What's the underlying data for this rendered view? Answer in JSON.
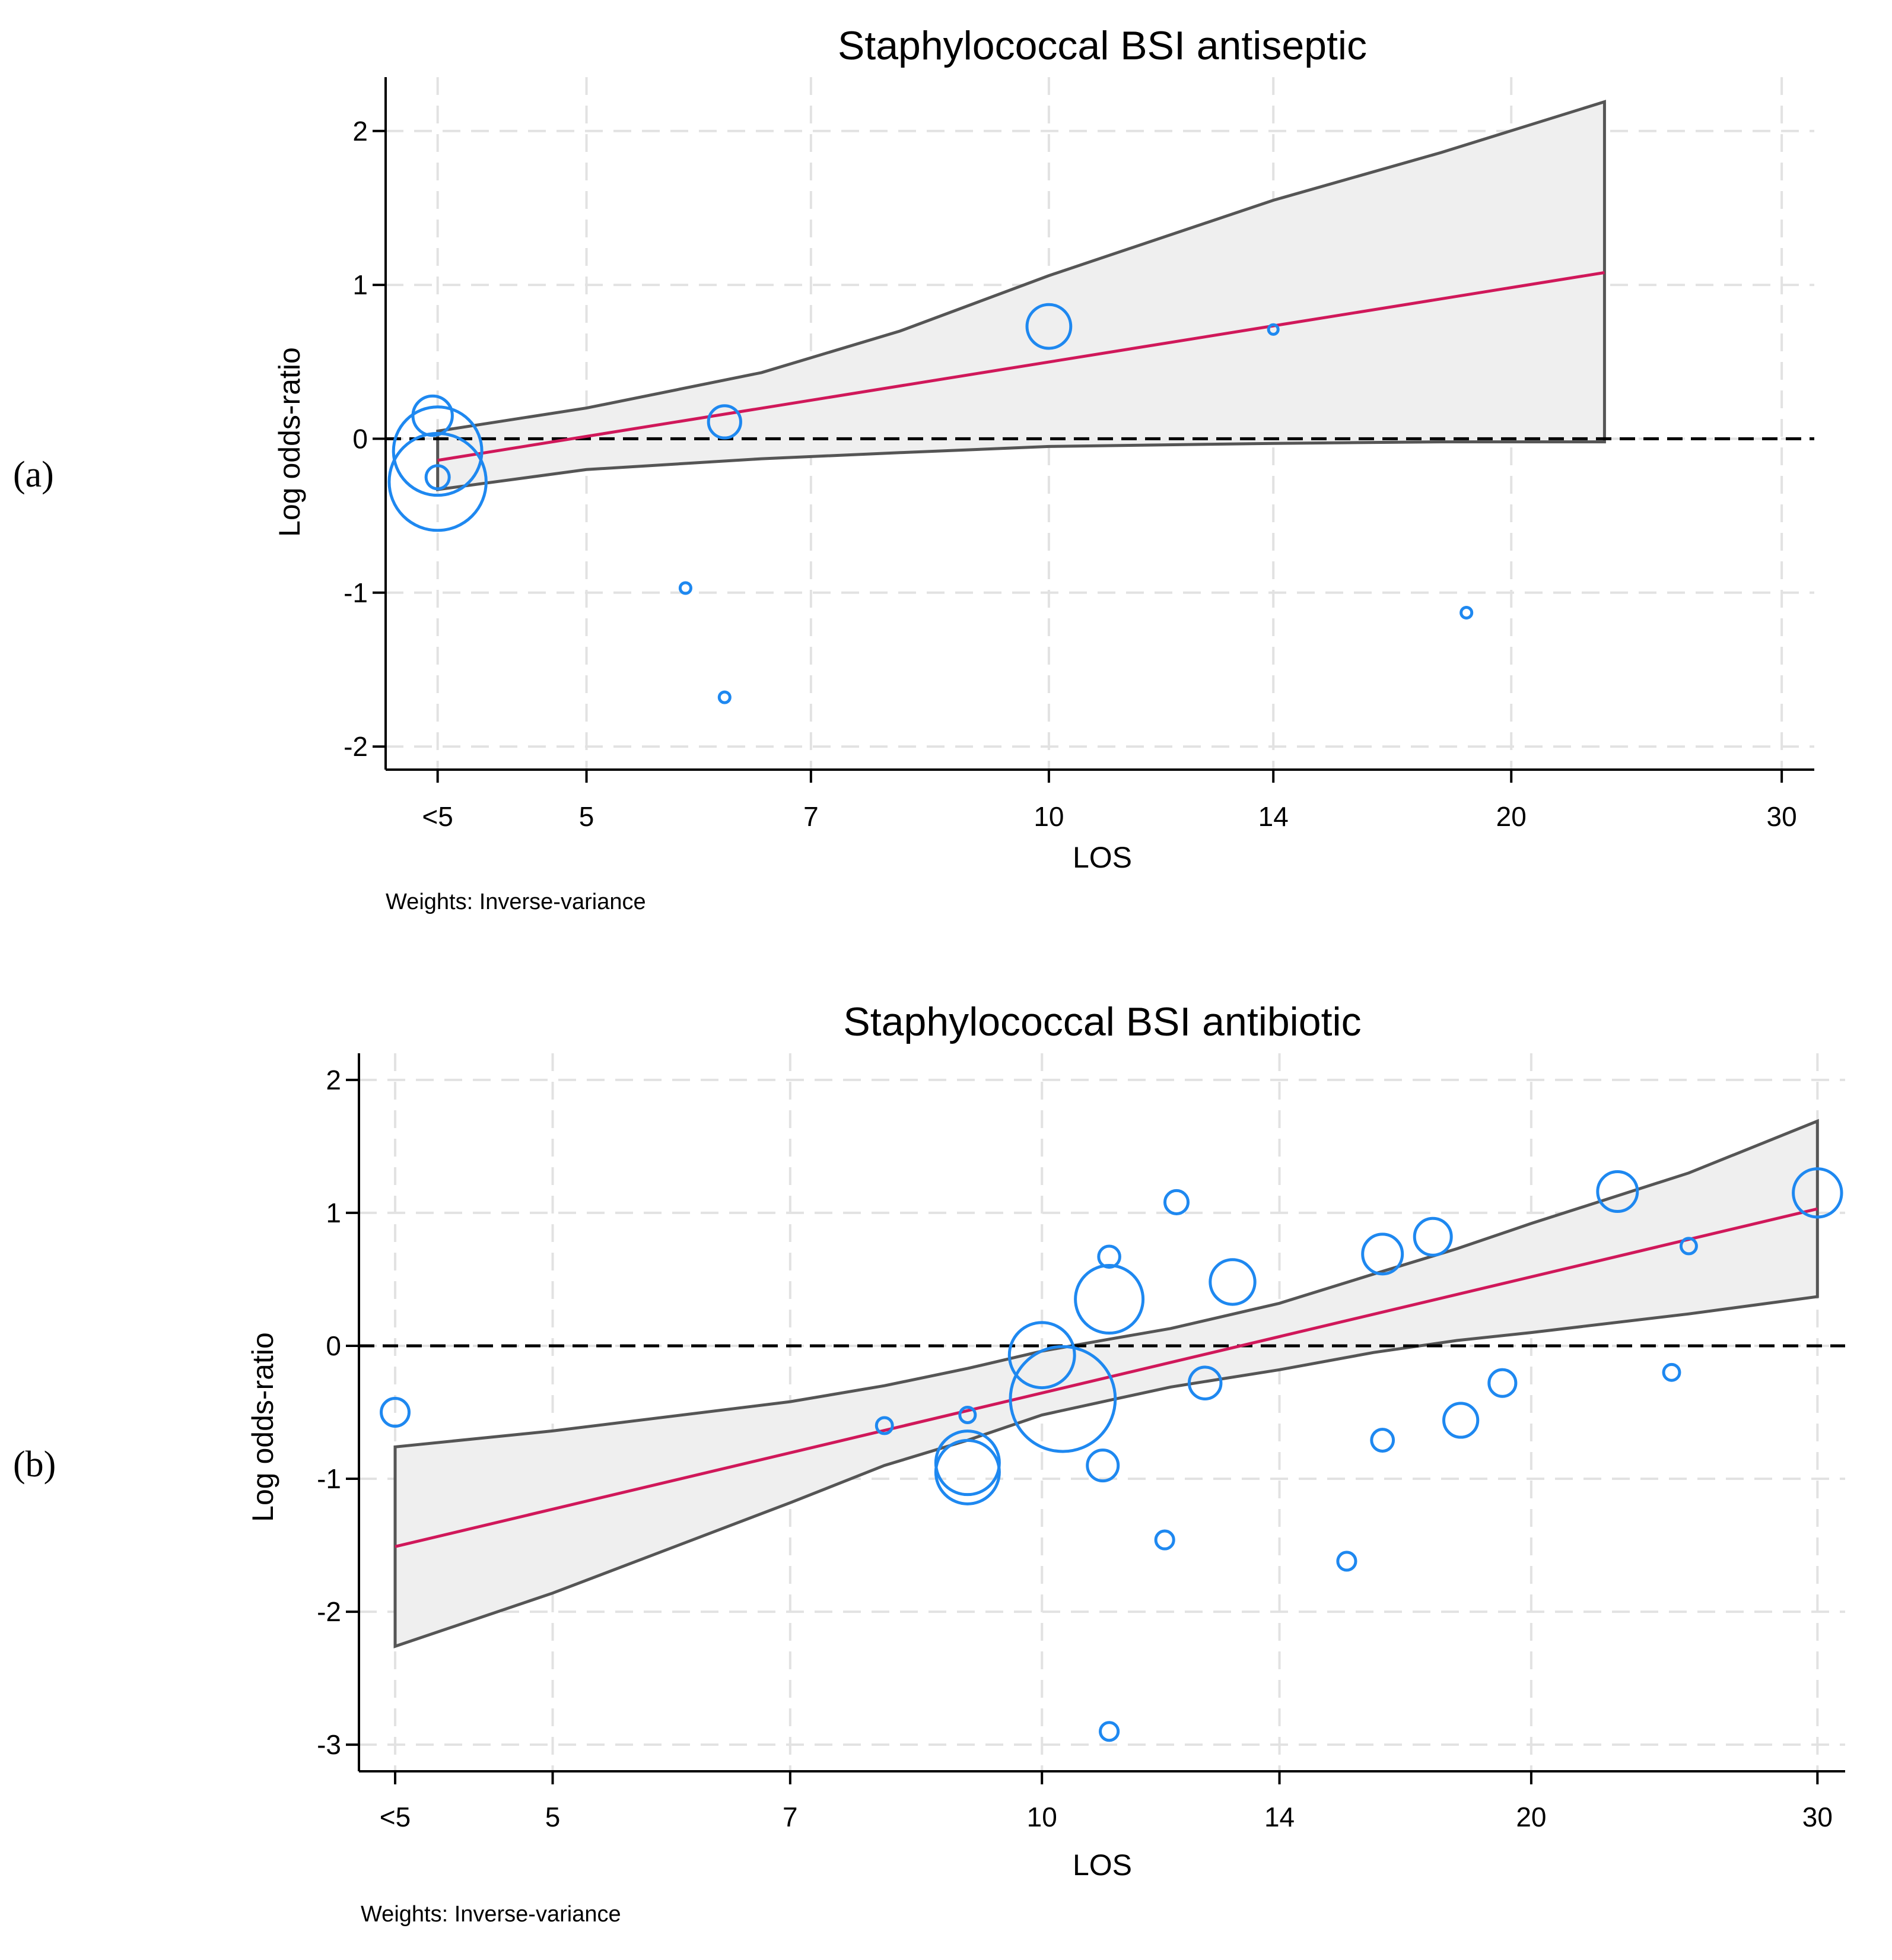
{
  "colors": {
    "bubble": "#1e88f0",
    "fit": "#d0185a",
    "band_fill": "#efefef",
    "band_edge": "#555555",
    "grid": "#e2e2e2",
    "axis": "#000000"
  },
  "chart_data": [
    {
      "type": "scatter",
      "panel_label": "(a)",
      "title": "Staphylococcal BSI antiseptic",
      "xlabel": "LOS",
      "ylabel": "Log odds-ratio",
      "note": "Weights: Inverse-variance",
      "x_scale": "log",
      "xlim": [
        3.7,
        31.5
      ],
      "ylim": [
        -2.15,
        2.35
      ],
      "x_ticks": [
        {
          "value": 4,
          "label": "<5"
        },
        {
          "value": 5,
          "label": "5"
        },
        {
          "value": 7,
          "label": "7"
        },
        {
          "value": 10,
          "label": "10"
        },
        {
          "value": 14,
          "label": "14"
        },
        {
          "value": 20,
          "label": "20"
        },
        {
          "value": 30,
          "label": "30"
        }
      ],
      "y_ticks": [
        {
          "value": 2,
          "label": "2"
        },
        {
          "value": 1,
          "label": "1"
        },
        {
          "value": 0,
          "label": "0"
        },
        {
          "value": -1,
          "label": "-1"
        },
        {
          "value": -2,
          "label": "-2"
        }
      ],
      "reference_y": 0,
      "points": [
        {
          "x": 3.97,
          "y": 0.15,
          "weight": 5
        },
        {
          "x": 4.0,
          "y": -0.25,
          "weight": 1.5
        },
        {
          "x": 4.0,
          "y": -0.08,
          "weight": 28
        },
        {
          "x": 4.0,
          "y": -0.28,
          "weight": 34
        },
        {
          "x": 5.8,
          "y": -0.97,
          "weight": 0.2
        },
        {
          "x": 6.15,
          "y": 0.11,
          "weight": 3.2
        },
        {
          "x": 6.15,
          "y": -1.68,
          "weight": 0.2
        },
        {
          "x": 10.0,
          "y": 0.73,
          "weight": 6.3
        },
        {
          "x": 14.0,
          "y": 0.71,
          "weight": 0.14
        },
        {
          "x": 18.7,
          "y": -1.13,
          "weight": 0.2
        }
      ],
      "fit_line": {
        "x": [
          4,
          23
        ],
        "y": [
          -0.14,
          1.08
        ]
      },
      "ci_band": {
        "x": [
          4,
          5,
          6.5,
          8,
          10,
          14,
          18,
          23
        ],
        "upper": [
          0.05,
          0.2,
          0.43,
          0.7,
          1.06,
          1.55,
          1.86,
          2.19
        ],
        "lower": [
          -0.33,
          -0.2,
          -0.13,
          -0.09,
          -0.05,
          -0.03,
          -0.02,
          -0.02
        ]
      }
    },
    {
      "type": "scatter",
      "panel_label": "(b)",
      "title": "Staphylococcal BSI antibiotic",
      "xlabel": "LOS",
      "ylabel": "Log odds-ratio",
      "note": "Weights: Inverse-variance",
      "x_scale": "log",
      "xlim": [
        3.8,
        31.2
      ],
      "ylim": [
        -3.2,
        2.2
      ],
      "x_ticks": [
        {
          "value": 4,
          "label": "<5"
        },
        {
          "value": 5,
          "label": "5"
        },
        {
          "value": 7,
          "label": "7"
        },
        {
          "value": 10,
          "label": "10"
        },
        {
          "value": 14,
          "label": "14"
        },
        {
          "value": 20,
          "label": "20"
        },
        {
          "value": 30,
          "label": "30"
        }
      ],
      "y_ticks": [
        {
          "value": 2,
          "label": "2"
        },
        {
          "value": 1,
          "label": "1"
        },
        {
          "value": 0,
          "label": "0"
        },
        {
          "value": -1,
          "label": "-1"
        },
        {
          "value": -2,
          "label": "-2"
        },
        {
          "value": -3,
          "label": "-3"
        }
      ],
      "reference_y": 0,
      "points": [
        {
          "x": 4.0,
          "y": -0.5,
          "weight": 2.3
        },
        {
          "x": 8.0,
          "y": -0.6,
          "weight": 0.6
        },
        {
          "x": 9.0,
          "y": -0.52,
          "weight": 0.55
        },
        {
          "x": 9.0,
          "y": -0.88,
          "weight": 14
        },
        {
          "x": 9.0,
          "y": -0.95,
          "weight": 14
        },
        {
          "x": 10.0,
          "y": -0.07,
          "weight": 14.8
        },
        {
          "x": 10.3,
          "y": -0.4,
          "weight": 40
        },
        {
          "x": 10.9,
          "y": -0.9,
          "weight": 2.9
        },
        {
          "x": 11.0,
          "y": 0.67,
          "weight": 1.2
        },
        {
          "x": 11.0,
          "y": 0.35,
          "weight": 16
        },
        {
          "x": 11.0,
          "y": -2.9,
          "weight": 0.8
        },
        {
          "x": 11.9,
          "y": -1.46,
          "weight": 0.8
        },
        {
          "x": 12.1,
          "y": 1.08,
          "weight": 1.5
        },
        {
          "x": 12.6,
          "y": -0.28,
          "weight": 3.1
        },
        {
          "x": 13.1,
          "y": 0.48,
          "weight": 6.6
        },
        {
          "x": 15.4,
          "y": -1.62,
          "weight": 0.8
        },
        {
          "x": 16.2,
          "y": 0.69,
          "weight": 5.1
        },
        {
          "x": 16.2,
          "y": -0.71,
          "weight": 1.3
        },
        {
          "x": 17.4,
          "y": 0.82,
          "weight": 4.3
        },
        {
          "x": 18.1,
          "y": -0.56,
          "weight": 3.6
        },
        {
          "x": 19.2,
          "y": -0.28,
          "weight": 2.1
        },
        {
          "x": 22.6,
          "y": 1.16,
          "weight": 5.1
        },
        {
          "x": 24.4,
          "y": -0.2,
          "weight": 0.6
        },
        {
          "x": 25.0,
          "y": 0.75,
          "weight": 0.55
        },
        {
          "x": 30.0,
          "y": 1.15,
          "weight": 7.8
        }
      ],
      "fit_line": {
        "x": [
          4,
          30
        ],
        "y": [
          -1.51,
          1.03
        ]
      },
      "ci_band": {
        "x": [
          4,
          5,
          7,
          8,
          9,
          10,
          11,
          12,
          14,
          16,
          18,
          20,
          25,
          30
        ],
        "upper": [
          -0.76,
          -0.64,
          -0.42,
          -0.3,
          -0.17,
          -0.04,
          0.05,
          0.13,
          0.32,
          0.54,
          0.73,
          0.92,
          1.3,
          1.69
        ],
        "lower": [
          -2.26,
          -1.86,
          -1.18,
          -0.9,
          -0.71,
          -0.52,
          -0.41,
          -0.31,
          -0.18,
          -0.05,
          0.04,
          0.1,
          0.24,
          0.37
        ]
      }
    }
  ]
}
